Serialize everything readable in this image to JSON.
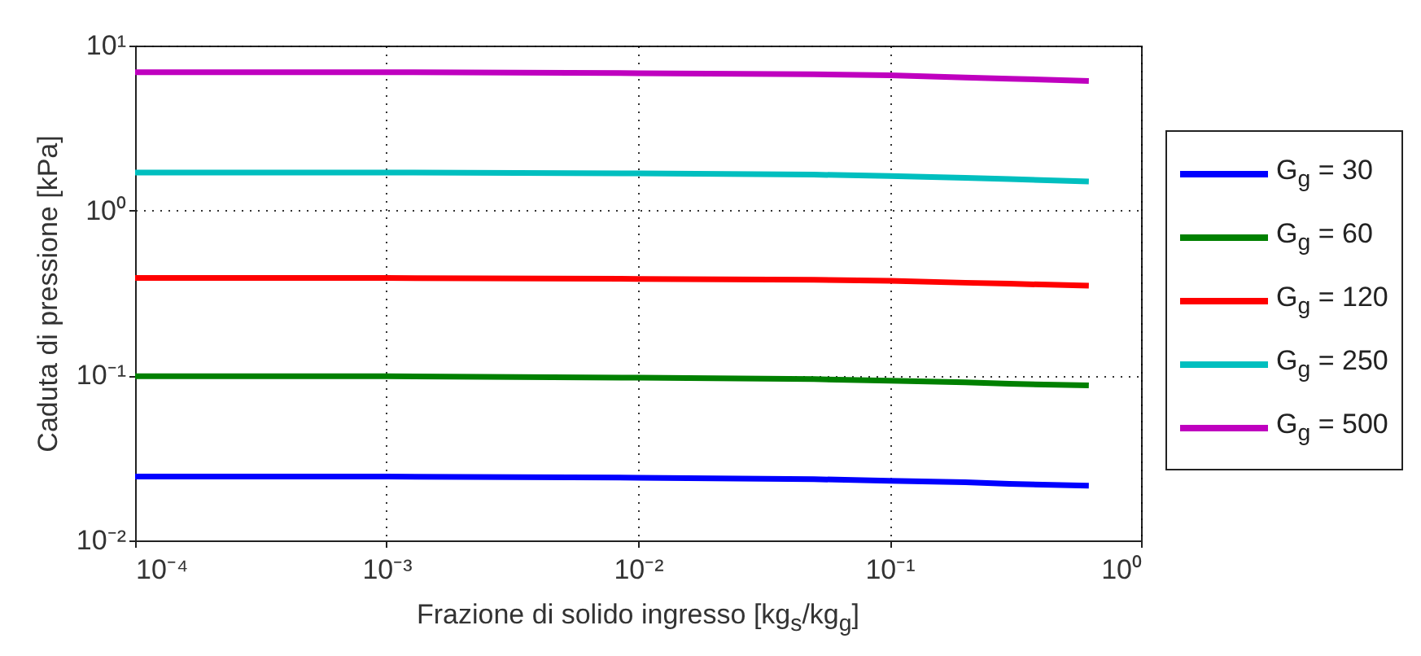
{
  "chart_data": {
    "type": "line",
    "xlabel": "Frazione di solido ingresso [kg$_{s}$/kg$_{g}$]",
    "ylabel": "Caduta di pressione [kPa]",
    "x": [
      0.0001,
      0.001,
      0.01,
      0.05,
      0.1,
      0.2,
      0.3,
      0.62
    ],
    "series": [
      {
        "name": "G$_{g}$ = 30",
        "color": "#0000ff",
        "values": [
          0.0244,
          0.0244,
          0.024,
          0.0235,
          0.023,
          0.0225,
          0.022,
          0.0215
        ]
      },
      {
        "name": "G$_{g}$ = 60",
        "color": "#008000",
        "values": [
          0.099,
          0.099,
          0.097,
          0.095,
          0.093,
          0.091,
          0.089,
          0.087
        ]
      },
      {
        "name": "G$_{g}$ = 120",
        "color": "#ff0000",
        "values": [
          0.39,
          0.39,
          0.385,
          0.38,
          0.375,
          0.365,
          0.36,
          0.35
        ]
      },
      {
        "name": "G$_{g}$ = 250",
        "color": "#00bfbf",
        "values": [
          1.7,
          1.7,
          1.68,
          1.65,
          1.62,
          1.58,
          1.55,
          1.5
        ]
      },
      {
        "name": "G$_{g}$ = 500",
        "color": "#bf00bf",
        "values": [
          6.9,
          6.9,
          6.8,
          6.7,
          6.6,
          6.4,
          6.3,
          6.1
        ]
      }
    ],
    "xlim": [
      0.0001,
      1
    ],
    "ylim": [
      0.01,
      10
    ],
    "xticks": [
      {
        "value": 0.0001,
        "label": "10⁻⁴"
      },
      {
        "value": 0.001,
        "label": "10⁻³"
      },
      {
        "value": 0.01,
        "label": "10⁻²"
      },
      {
        "value": 0.1,
        "label": "10⁻¹"
      },
      {
        "value": 1,
        "label": "10⁰"
      }
    ],
    "yticks": [
      {
        "value": 0.01,
        "label": "10⁻²"
      },
      {
        "value": 0.1,
        "label": "10⁻¹"
      },
      {
        "value": 1,
        "label": "10⁰"
      },
      {
        "value": 10,
        "label": "10¹"
      }
    ],
    "log": "xy",
    "grid": true,
    "legend": "right",
    "line_style": "solid"
  }
}
